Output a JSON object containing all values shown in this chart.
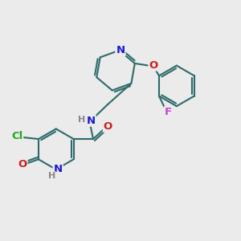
{
  "bg_color": "#ebebeb",
  "bond_color": "#2d6b6b",
  "bond_width": 1.5,
  "atom_colors": {
    "N": "#1a1acc",
    "O": "#cc2020",
    "Cl": "#22aa22",
    "F": "#cc44cc",
    "H": "#888888",
    "C": "#2d6b6b"
  },
  "font_size": 9.5,
  "xlim": [
    0,
    10
  ],
  "ylim": [
    0,
    10
  ]
}
